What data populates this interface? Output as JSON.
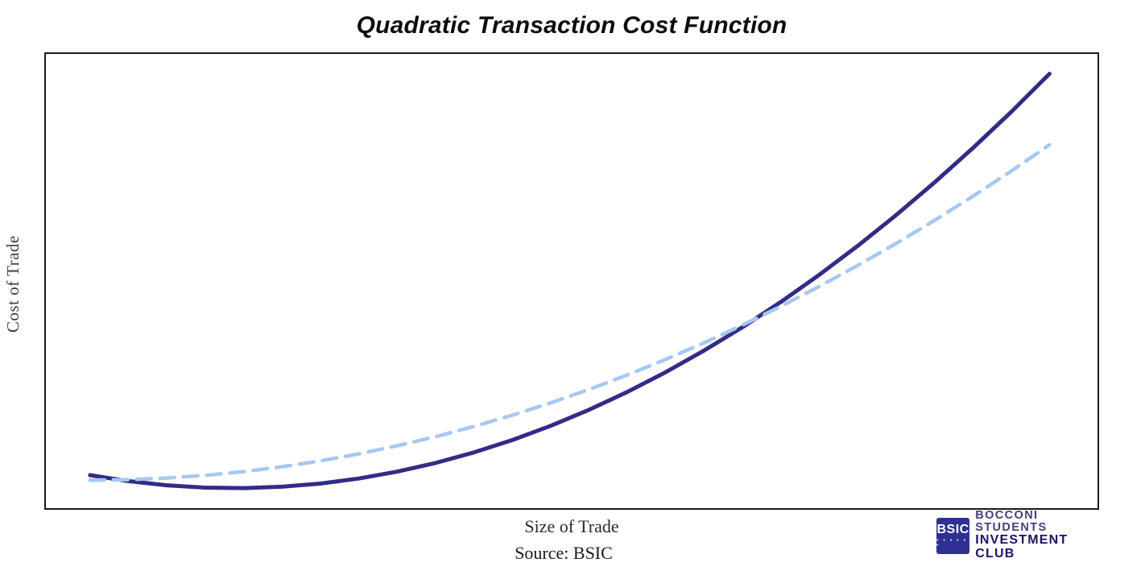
{
  "chart_data": {
    "type": "line",
    "title": "Quadratic Transaction Cost Function",
    "xlabel": "Size of Trade",
    "ylabel": "Cost of Trade",
    "source_note": "Source: BSIC",
    "xlim": [
      -0.46,
      10.5
    ],
    "ylim": [
      0,
      10
    ],
    "grid": false,
    "ticks": "none",
    "legend_position": "none",
    "plot_border_color": "#1c1c1c",
    "series": [
      {
        "name": "quadratic-cost-solid",
        "line_style": "solid",
        "color": "#322C86",
        "stroke_width": 5,
        "points": [
          [
            0,
            0.727
          ],
          [
            0.4,
            0.595
          ],
          [
            0.8,
            0.503
          ],
          [
            1.2,
            0.452
          ],
          [
            1.6,
            0.441
          ],
          [
            2,
            0.471
          ],
          [
            2.4,
            0.541
          ],
          [
            2.8,
            0.652
          ],
          [
            3.2,
            0.803
          ],
          [
            3.6,
            0.994
          ],
          [
            4,
            1.227
          ],
          [
            4.4,
            1.499
          ],
          [
            4.8,
            1.812
          ],
          [
            5.2,
            2.165
          ],
          [
            5.6,
            2.559
          ],
          [
            6,
            2.994
          ],
          [
            6.4,
            3.469
          ],
          [
            6.8,
            3.984
          ],
          [
            7.2,
            4.54
          ],
          [
            7.6,
            5.136
          ],
          [
            8,
            5.773
          ],
          [
            8.4,
            6.45
          ],
          [
            8.8,
            7.168
          ],
          [
            9.2,
            7.926
          ],
          [
            9.6,
            8.724
          ],
          [
            10,
            9.564
          ]
        ]
      },
      {
        "name": "benchmark-cost-dashed",
        "line_style": "dashed",
        "dash": [
          18,
          11
        ],
        "color": "#A6C8F1",
        "stroke_width": 4.5,
        "points": [
          [
            0,
            0.616
          ],
          [
            0.4,
            0.628
          ],
          [
            0.8,
            0.663
          ],
          [
            1.2,
            0.722
          ],
          [
            1.6,
            0.805
          ],
          [
            2,
            0.911
          ],
          [
            2.4,
            1.041
          ],
          [
            2.8,
            1.195
          ],
          [
            3.2,
            1.372
          ],
          [
            3.6,
            1.573
          ],
          [
            4,
            1.797
          ],
          [
            4.4,
            2.046
          ],
          [
            4.8,
            2.317
          ],
          [
            5.2,
            2.613
          ],
          [
            5.6,
            2.932
          ],
          [
            6,
            3.274
          ],
          [
            6.4,
            3.64
          ],
          [
            6.8,
            4.03
          ],
          [
            7.2,
            4.444
          ],
          [
            7.6,
            4.881
          ],
          [
            8,
            5.342
          ],
          [
            8.4,
            5.826
          ],
          [
            8.8,
            6.334
          ],
          [
            9.2,
            6.866
          ],
          [
            9.6,
            7.421
          ],
          [
            10,
            8.0
          ]
        ]
      }
    ]
  },
  "branding": {
    "badge_text": "BSIC",
    "badge_dots": "• • • • • •",
    "line1": "BOCCONI STUDENTS",
    "line2": "INVESTMENT CLUB",
    "badge_bg": "#2E3192",
    "text_color": "#1B1464"
  },
  "colors": {
    "background": "#ffffff",
    "title_color": "#0d0d0d",
    "axis_label_color": "#3d3d3d",
    "plot_border": "#1c1c1c"
  }
}
